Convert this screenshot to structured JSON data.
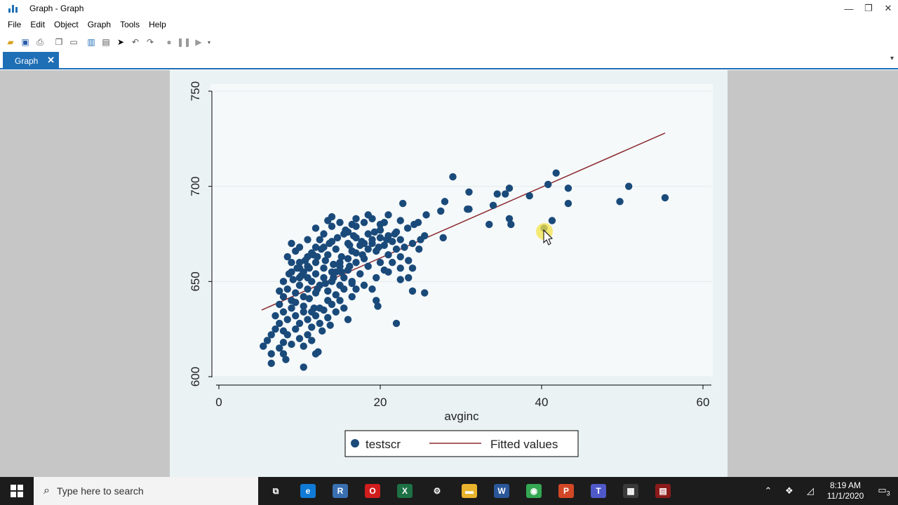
{
  "window": {
    "title": "Graph - Graph"
  },
  "menu": [
    "File",
    "Edit",
    "Object",
    "Graph",
    "Tools",
    "Help"
  ],
  "tab": {
    "label": "Graph",
    "close": "✕"
  },
  "taskbar": {
    "search_placeholder": "Type here to search",
    "time": "8:19 AM",
    "date": "11/1/2020",
    "notif_count": "3",
    "apps": [
      {
        "name": "task-view",
        "color": "#1c1c1c",
        "glyph": "⧉"
      },
      {
        "name": "edge",
        "color": "#0f7bd6",
        "glyph": "e"
      },
      {
        "name": "r",
        "color": "#3a6fb0",
        "glyph": "R"
      },
      {
        "name": "opera",
        "color": "#d21d1d",
        "glyph": "O"
      },
      {
        "name": "excel",
        "color": "#1e7145",
        "glyph": "X"
      },
      {
        "name": "settings",
        "color": "#1c1c1c",
        "glyph": "⚙"
      },
      {
        "name": "file-explorer",
        "color": "#e9b42d",
        "glyph": "▬"
      },
      {
        "name": "word",
        "color": "#2b579a",
        "glyph": "W"
      },
      {
        "name": "chrome",
        "color": "#34a853",
        "glyph": "◉"
      },
      {
        "name": "powerpoint",
        "color": "#d24726",
        "glyph": "P"
      },
      {
        "name": "teams",
        "color": "#5059c9",
        "glyph": "T"
      },
      {
        "name": "stata",
        "color": "#3a3a3a",
        "glyph": "▦"
      },
      {
        "name": "video-app",
        "color": "#8b1a1a",
        "glyph": "▤"
      }
    ]
  },
  "chart_data": {
    "type": "scatter",
    "xlabel": "avginc",
    "ylabel": "",
    "xlim": [
      0,
      60
    ],
    "ylim": [
      600,
      750
    ],
    "xticks": [
      "0",
      "20",
      "40",
      "60"
    ],
    "yticks": [
      "600",
      "650",
      "700",
      "750"
    ],
    "grid": "horizontal",
    "legend_position": "bottom",
    "colors": {
      "points": "#1a4a7a",
      "fit": "#8b2a2f"
    },
    "series": [
      {
        "name": "testscr",
        "points": [
          [
            29,
            705
          ],
          [
            31,
            697
          ],
          [
            41.8,
            707
          ],
          [
            40.8,
            701
          ],
          [
            43.3,
            699
          ],
          [
            50.8,
            700
          ],
          [
            55.3,
            694
          ],
          [
            49.7,
            692
          ],
          [
            43.3,
            691
          ],
          [
            38.5,
            695
          ],
          [
            36,
            699
          ],
          [
            35.5,
            696
          ],
          [
            34.5,
            696
          ],
          [
            34,
            690
          ],
          [
            30.8,
            688
          ],
          [
            31,
            688
          ],
          [
            27.5,
            687
          ],
          [
            28,
            692
          ],
          [
            22.8,
            691
          ],
          [
            36,
            683
          ],
          [
            36.2,
            680
          ],
          [
            33.5,
            680
          ],
          [
            41.3,
            682
          ],
          [
            40.3,
            678
          ],
          [
            27.8,
            673
          ],
          [
            25.5,
            674
          ],
          [
            25.7,
            685
          ],
          [
            24.7,
            681
          ],
          [
            24.2,
            680
          ],
          [
            23.4,
            678
          ],
          [
            22.5,
            682
          ],
          [
            22,
            676
          ],
          [
            21,
            685
          ],
          [
            20.5,
            681
          ],
          [
            20,
            677
          ],
          [
            19.3,
            676
          ],
          [
            18.5,
            685
          ],
          [
            17,
            683
          ],
          [
            16.5,
            680
          ],
          [
            14,
            684
          ],
          [
            13.5,
            682
          ],
          [
            12,
            678
          ],
          [
            11,
            672
          ],
          [
            10,
            668
          ],
          [
            9.5,
            666
          ],
          [
            8.5,
            663
          ],
          [
            9,
            670
          ],
          [
            10,
            660
          ],
          [
            10.5,
            655
          ],
          [
            11,
            658
          ],
          [
            11.5,
            665
          ],
          [
            12,
            660
          ],
          [
            12.5,
            672
          ],
          [
            13,
            668
          ],
          [
            13.5,
            664
          ],
          [
            14,
            671
          ],
          [
            14.5,
            667
          ],
          [
            15,
            660
          ],
          [
            15.5,
            675
          ],
          [
            16,
            670
          ],
          [
            16.5,
            666
          ],
          [
            17,
            673
          ],
          [
            17.5,
            669
          ],
          [
            18,
            662
          ],
          [
            18.5,
            675
          ],
          [
            19,
            670
          ],
          [
            19.5,
            666
          ],
          [
            20,
            673
          ],
          [
            20.5,
            669
          ],
          [
            21,
            664
          ],
          [
            21.5,
            671
          ],
          [
            22,
            667
          ],
          [
            22.5,
            672
          ],
          [
            23,
            668
          ],
          [
            24,
            670
          ],
          [
            25,
            672
          ],
          [
            23.5,
            661
          ],
          [
            22.5,
            663
          ],
          [
            24,
            657
          ],
          [
            24.8,
            667
          ],
          [
            22.5,
            657
          ],
          [
            22.5,
            651
          ],
          [
            21,
            655
          ],
          [
            20,
            660
          ],
          [
            19.5,
            652
          ],
          [
            18.5,
            658
          ],
          [
            17.5,
            654
          ],
          [
            17,
            660
          ],
          [
            16.5,
            650
          ],
          [
            16,
            656
          ],
          [
            15.5,
            652
          ],
          [
            15,
            648
          ],
          [
            14.5,
            655
          ],
          [
            14,
            650
          ],
          [
            13.5,
            645
          ],
          [
            13,
            652
          ],
          [
            12.5,
            648
          ],
          [
            12,
            644
          ],
          [
            11.5,
            650
          ],
          [
            11,
            646
          ],
          [
            10.5,
            642
          ],
          [
            10,
            648
          ],
          [
            9.5,
            644
          ],
          [
            9,
            640
          ],
          [
            8.5,
            646
          ],
          [
            8,
            642
          ],
          [
            7.5,
            638
          ],
          [
            8,
            634
          ],
          [
            8.5,
            630
          ],
          [
            9,
            636
          ],
          [
            9.5,
            632
          ],
          [
            10,
            628
          ],
          [
            10.5,
            634
          ],
          [
            11,
            630
          ],
          [
            11.5,
            626
          ],
          [
            12,
            632
          ],
          [
            12.5,
            628
          ],
          [
            13,
            635
          ],
          [
            13.5,
            631
          ],
          [
            14,
            638
          ],
          [
            14.5,
            634
          ],
          [
            15,
            640
          ],
          [
            15.5,
            636
          ],
          [
            16,
            630
          ],
          [
            16.5,
            642
          ],
          [
            17,
            646
          ],
          [
            18,
            648
          ],
          [
            19,
            646
          ],
          [
            19.5,
            640
          ],
          [
            20.5,
            656
          ],
          [
            21.5,
            660
          ],
          [
            23.5,
            652
          ],
          [
            24,
            645
          ],
          [
            25.5,
            644
          ],
          [
            22,
            628
          ],
          [
            19.7,
            637
          ],
          [
            7,
            625
          ],
          [
            6.5,
            622
          ],
          [
            6,
            619
          ],
          [
            5.5,
            616
          ],
          [
            6.5,
            612
          ],
          [
            7.5,
            615
          ],
          [
            8,
            618
          ],
          [
            8.5,
            622
          ],
          [
            9,
            617
          ],
          [
            9.5,
            625
          ],
          [
            10,
            620
          ],
          [
            10.5,
            616
          ],
          [
            11,
            622
          ],
          [
            11.5,
            619
          ],
          [
            12,
            612
          ],
          [
            8,
            612
          ],
          [
            6.5,
            607
          ],
          [
            8.3,
            609
          ],
          [
            10.5,
            605
          ],
          [
            12.3,
            613
          ],
          [
            7,
            632
          ],
          [
            7.5,
            628
          ],
          [
            8,
            624
          ],
          [
            7.5,
            645
          ],
          [
            8,
            650
          ],
          [
            9,
            655
          ],
          [
            10,
            652
          ],
          [
            11,
            663
          ],
          [
            12,
            668
          ],
          [
            13,
            675
          ],
          [
            14,
            679
          ],
          [
            15,
            681
          ],
          [
            16,
            676
          ],
          [
            17,
            679
          ],
          [
            18,
            681
          ],
          [
            19,
            683
          ],
          [
            20,
            680
          ],
          [
            21,
            674
          ],
          [
            19,
            672
          ],
          [
            18,
            670
          ],
          [
            17,
            665
          ],
          [
            16,
            662
          ],
          [
            15,
            658
          ],
          [
            14,
            655
          ],
          [
            13,
            657
          ],
          [
            12,
            654
          ],
          [
            11,
            652
          ],
          [
            10,
            657
          ],
          [
            9,
            660
          ],
          [
            18.5,
            667
          ],
          [
            17.8,
            664
          ],
          [
            19.8,
            668
          ],
          [
            20.8,
            672
          ],
          [
            21.8,
            675
          ],
          [
            16.2,
            669
          ],
          [
            15.2,
            663
          ],
          [
            14.2,
            659
          ],
          [
            13.2,
            661
          ],
          [
            12.2,
            663
          ],
          [
            11.2,
            657
          ],
          [
            10.2,
            653
          ],
          [
            9.2,
            651
          ],
          [
            8.7,
            654
          ],
          [
            9.7,
            657
          ],
          [
            10.7,
            661
          ],
          [
            11.7,
            664
          ],
          [
            12.7,
            667
          ],
          [
            13.7,
            670
          ],
          [
            14.7,
            673
          ],
          [
            15.7,
            677
          ],
          [
            16.7,
            674
          ],
          [
            17.7,
            671
          ],
          [
            13.5,
            640
          ],
          [
            12.5,
            636
          ],
          [
            11.5,
            634
          ],
          [
            10.5,
            637
          ],
          [
            9.5,
            639
          ],
          [
            14.5,
            643
          ],
          [
            15.5,
            646
          ],
          [
            16.5,
            649
          ],
          [
            12.8,
            624
          ],
          [
            13.8,
            627
          ],
          [
            11.8,
            636
          ],
          [
            11.2,
            641
          ],
          [
            12.2,
            646
          ],
          [
            13.2,
            649
          ],
          [
            14.2,
            652
          ],
          [
            15.2,
            655
          ],
          [
            16.2,
            658
          ]
        ]
      },
      {
        "name": "Fitted values",
        "line": [
          [
            5.3,
            635
          ],
          [
            55.3,
            728
          ]
        ]
      }
    ]
  }
}
